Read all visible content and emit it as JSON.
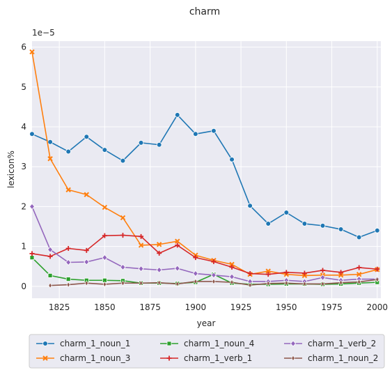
{
  "chart_data": {
    "type": "line",
    "title": "charm",
    "xlabel": "year",
    "ylabel": "lexicon%",
    "y_multiplier_label": "1e−5",
    "xlim": [
      1810,
      2002
    ],
    "ylim": [
      -0.3,
      6.15
    ],
    "x_ticks": [
      1825,
      1850,
      1875,
      1900,
      1925,
      1950,
      1975,
      2000
    ],
    "y_ticks": [
      0,
      1,
      2,
      3,
      4,
      5,
      6
    ],
    "grid": true,
    "legend_position": "bottom-center",
    "x": [
      1810,
      1820,
      1830,
      1840,
      1850,
      1860,
      1870,
      1880,
      1890,
      1900,
      1910,
      1920,
      1930,
      1940,
      1950,
      1960,
      1970,
      1980,
      1990,
      2000
    ],
    "series": [
      {
        "name": "charm_1_noun_1",
        "color": "#1f77b4",
        "marker": "circle",
        "values": [
          3.82,
          3.62,
          3.38,
          3.75,
          3.42,
          3.15,
          3.6,
          3.55,
          4.3,
          3.82,
          3.9,
          3.18,
          2.02,
          1.57,
          1.85,
          1.57,
          1.52,
          1.43,
          1.23,
          1.4
        ]
      },
      {
        "name": "charm_1_noun_3",
        "color": "#ff7f0e",
        "marker": "x",
        "values": [
          5.88,
          3.2,
          2.42,
          2.3,
          1.98,
          1.72,
          1.03,
          1.05,
          1.13,
          0.78,
          0.65,
          0.55,
          0.3,
          0.38,
          0.3,
          0.27,
          0.28,
          0.28,
          0.3,
          0.42
        ]
      },
      {
        "name": "charm_1_noun_4",
        "color": "#2ca02c",
        "marker": "square",
        "values": [
          0.72,
          0.27,
          0.18,
          0.15,
          0.15,
          0.14,
          0.08,
          0.08,
          0.07,
          0.1,
          0.3,
          0.08,
          0.05,
          0.05,
          0.06,
          0.06,
          0.05,
          0.06,
          0.08,
          0.1
        ]
      },
      {
        "name": "charm_1_verb_1",
        "color": "#d62728",
        "marker": "plus",
        "values": [
          0.82,
          0.75,
          0.95,
          0.9,
          1.27,
          1.28,
          1.25,
          0.83,
          1.03,
          0.72,
          0.62,
          0.48,
          0.32,
          0.3,
          0.35,
          0.33,
          0.4,
          0.35,
          0.47,
          0.43
        ]
      },
      {
        "name": "charm_1_verb_2",
        "color": "#9467bd",
        "marker": "diamond",
        "values": [
          2.0,
          0.92,
          0.6,
          0.61,
          0.72,
          0.48,
          0.44,
          0.41,
          0.45,
          0.32,
          0.28,
          0.24,
          0.12,
          0.12,
          0.15,
          0.12,
          0.22,
          0.15,
          0.18,
          0.18
        ]
      },
      {
        "name": "charm_1_noun_2",
        "color": "#8c564b",
        "marker": "thin_diamond",
        "values": [
          null,
          0.02,
          0.04,
          0.08,
          0.05,
          0.08,
          0.08,
          0.09,
          0.06,
          0.12,
          0.12,
          0.1,
          0.03,
          0.07,
          0.08,
          0.06,
          0.06,
          0.09,
          0.11,
          0.17
        ]
      }
    ]
  }
}
